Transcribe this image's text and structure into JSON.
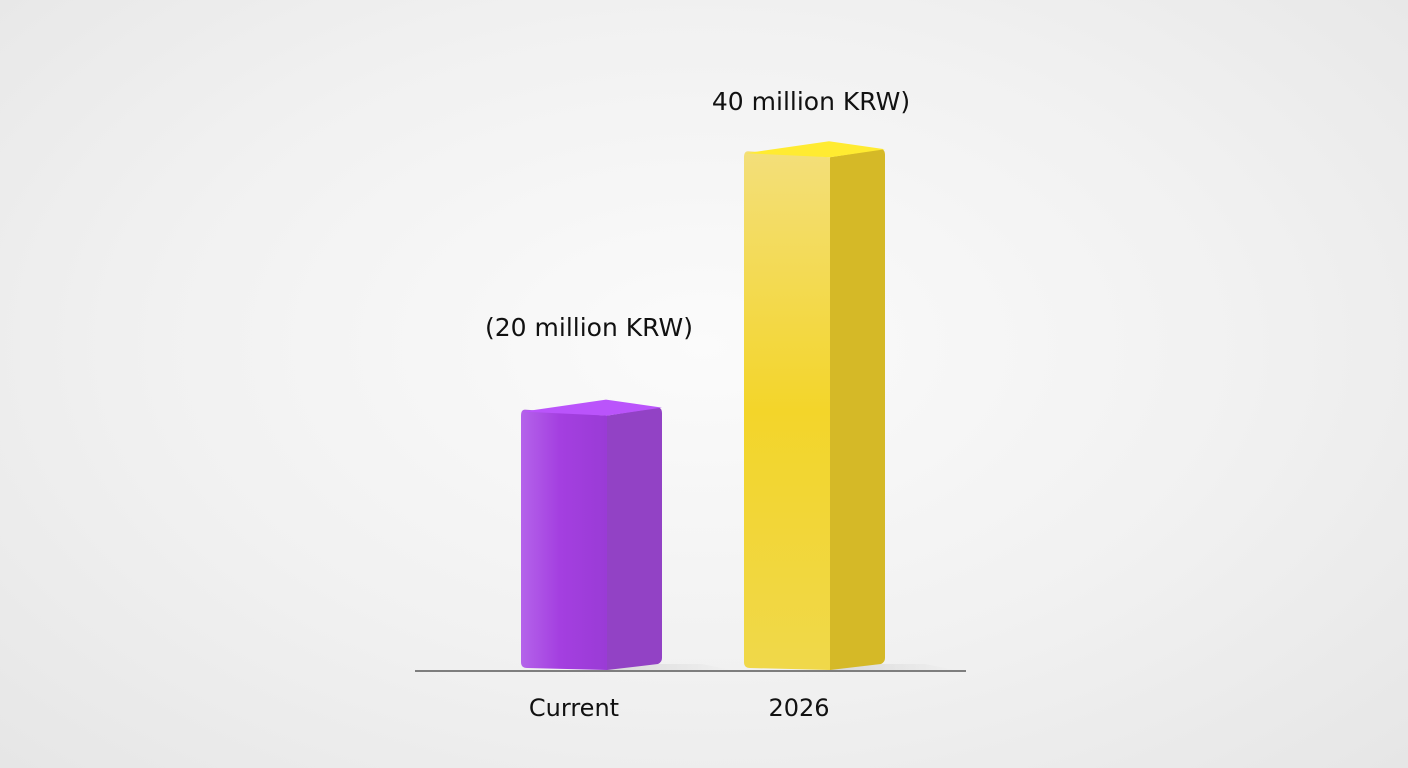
{
  "chart_data": {
    "type": "bar",
    "categories": [
      "Current",
      "2026"
    ],
    "values": [
      20,
      40
    ],
    "data_labels": [
      "(20 million KRW)",
      "40 million KRW)"
    ],
    "colors": [
      "#a64be0",
      "#f2d22c"
    ],
    "ylim": [
      0,
      45
    ],
    "grid": false,
    "legend": "none",
    "title": "",
    "xlabel": "",
    "ylabel": ""
  }
}
